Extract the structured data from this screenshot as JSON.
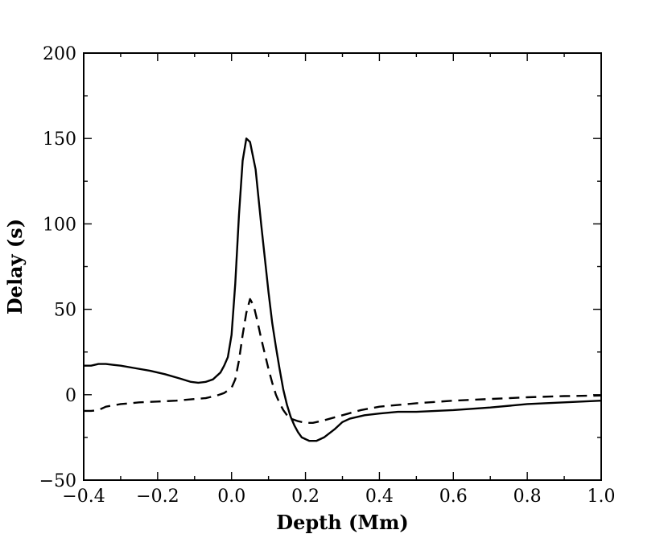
{
  "chart_data": {
    "type": "line",
    "title": "",
    "xlabel": "Depth (Mm)",
    "ylabel": "Delay (s)",
    "xlim": [
      -0.4,
      1.0
    ],
    "ylim": [
      -50,
      200
    ],
    "xticks": [
      -0.4,
      -0.2,
      0.0,
      0.2,
      0.4,
      0.6,
      0.8,
      1.0
    ],
    "xtick_labels": [
      "−0.4",
      "−0.2",
      "0.0",
      "0.2",
      "0.4",
      "0.6",
      "0.8",
      "1.0"
    ],
    "yticks": [
      -50,
      0,
      50,
      100,
      150,
      200
    ],
    "ytick_labels": [
      "−50",
      "0",
      "50",
      "100",
      "150",
      "200"
    ],
    "grid": false,
    "legend": "none",
    "series": [
      {
        "style": "solid",
        "color": "#000000",
        "x": [
          -0.4,
          -0.38,
          -0.36,
          -0.34,
          -0.32,
          -0.3,
          -0.26,
          -0.22,
          -0.18,
          -0.14,
          -0.11,
          -0.09,
          -0.07,
          -0.05,
          -0.03,
          -0.02,
          -0.01,
          0.0,
          0.01,
          0.02,
          0.03,
          0.04,
          0.05,
          0.065,
          0.08,
          0.09,
          0.1,
          0.11,
          0.12,
          0.13,
          0.14,
          0.15,
          0.16,
          0.17,
          0.18,
          0.19,
          0.2,
          0.21,
          0.23,
          0.25,
          0.28,
          0.3,
          0.32,
          0.36,
          0.4,
          0.45,
          0.5,
          0.6,
          0.7,
          0.8,
          0.9,
          1.0
        ],
        "y": [
          17,
          17,
          18,
          18,
          17.5,
          17,
          15.5,
          14,
          12,
          9.5,
          7.5,
          7,
          7.5,
          9,
          13,
          17,
          22,
          35,
          65,
          105,
          137,
          150,
          148,
          132,
          100,
          80,
          60,
          42,
          28,
          15,
          3,
          -6,
          -13,
          -18,
          -22,
          -25,
          -26,
          -27,
          -27,
          -25,
          -20,
          -16,
          -14,
          -12,
          -11,
          -10,
          -10,
          -9,
          -7.5,
          -5.5,
          -4.5,
          -3.5
        ]
      },
      {
        "style": "dashed",
        "color": "#000000",
        "x": [
          -0.4,
          -0.38,
          -0.36,
          -0.34,
          -0.3,
          -0.25,
          -0.2,
          -0.15,
          -0.1,
          -0.07,
          -0.04,
          -0.02,
          0.0,
          0.01,
          0.02,
          0.03,
          0.04,
          0.05,
          0.06,
          0.07,
          0.08,
          0.09,
          0.1,
          0.11,
          0.12,
          0.13,
          0.14,
          0.15,
          0.16,
          0.18,
          0.2,
          0.22,
          0.25,
          0.3,
          0.35,
          0.4,
          0.5,
          0.6,
          0.7,
          0.8,
          0.9,
          1.0
        ],
        "y": [
          -9.5,
          -9.5,
          -9,
          -7,
          -5.5,
          -4.5,
          -4,
          -3.5,
          -2.5,
          -2,
          -0.5,
          1,
          4,
          9,
          20,
          35,
          48,
          56,
          52,
          43,
          33,
          24,
          15,
          7,
          0,
          -5,
          -9,
          -12,
          -14,
          -15.5,
          -16.5,
          -16.5,
          -15,
          -12,
          -9,
          -7,
          -5,
          -3.5,
          -2.5,
          -1.5,
          -0.8,
          -0.5
        ]
      }
    ]
  }
}
